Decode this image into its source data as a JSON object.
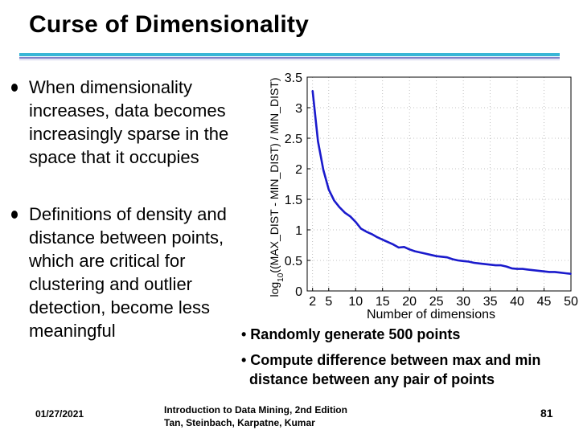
{
  "slide": {
    "title": "Curse of Dimensionality",
    "bullets": [
      "When dimensionality increases, data becomes increasingly sparse in the space that it occupies",
      "Definitions of density and distance between points, which are critical for clustering and outlier detection, become less meaningful"
    ],
    "notes": [
      "• Randomly generate 500 points",
      "• Compute difference between max and min distance between any pair of points"
    ],
    "footer": {
      "date": "01/27/2021",
      "book_line1": "Introduction to Data Mining, 2nd Edition",
      "book_line2": "Tan, Steinbach, Karpatne, Kumar",
      "page": "81"
    }
  },
  "colors": {
    "title_rule": "#39b6d6",
    "series": "#1a1acc",
    "grid": "#b0b0b0"
  },
  "chart_data": {
    "type": "line",
    "xlabel": "Number of dimensions",
    "ylabel_prefix": "log",
    "ylabel_sub": "10",
    "ylabel_suffix": "((MAX_DIST - MIN_DIST) / MIN_DIST)",
    "xlim": [
      1,
      50
    ],
    "ylim": [
      0,
      3.5
    ],
    "xticks": [
      2,
      5,
      10,
      15,
      20,
      25,
      30,
      35,
      40,
      45,
      50
    ],
    "xtick_labels": [
      "2",
      "5",
      "10",
      "15",
      "20",
      "25",
      "30",
      "35",
      "40",
      "45",
      "50"
    ],
    "yticks": [
      0,
      0.5,
      1,
      1.5,
      2,
      2.5,
      3,
      3.5
    ],
    "ytick_labels": [
      "0",
      "0.5",
      "1",
      "1.5",
      "2",
      "2.5",
      "3",
      "3.5"
    ],
    "grid": true,
    "series": [
      {
        "x": [
          2,
          3,
          4,
          5,
          6,
          7,
          8,
          9,
          10,
          11,
          12,
          13,
          14,
          15,
          16,
          17,
          18,
          19,
          20,
          21,
          22,
          23,
          24,
          25,
          26,
          27,
          28,
          29,
          30,
          31,
          32,
          33,
          34,
          35,
          36,
          37,
          38,
          39,
          40,
          41,
          42,
          43,
          44,
          45,
          46,
          47,
          48,
          49,
          50
        ],
        "values": [
          3.28,
          2.45,
          1.98,
          1.66,
          1.48,
          1.37,
          1.28,
          1.22,
          1.13,
          1.02,
          0.97,
          0.93,
          0.88,
          0.84,
          0.8,
          0.76,
          0.71,
          0.72,
          0.68,
          0.65,
          0.63,
          0.61,
          0.59,
          0.57,
          0.56,
          0.55,
          0.52,
          0.5,
          0.49,
          0.48,
          0.46,
          0.45,
          0.44,
          0.43,
          0.42,
          0.42,
          0.4,
          0.37,
          0.36,
          0.36,
          0.35,
          0.34,
          0.33,
          0.32,
          0.31,
          0.31,
          0.3,
          0.29,
          0.28
        ]
      }
    ]
  }
}
